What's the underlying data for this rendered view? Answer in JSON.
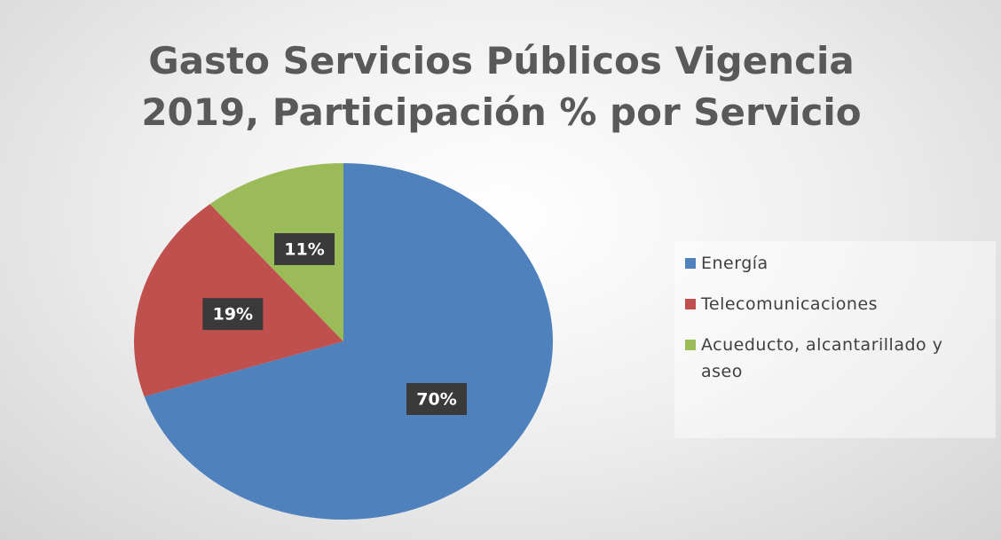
{
  "chart_data": {
    "type": "pie",
    "title": "Gasto Servicios Públicos Vigencia 2019, Participación % por Servicio",
    "categories": [
      "Energía",
      "Telecomunicaciones",
      "Acueducto, alcantarillado y aseo"
    ],
    "values": [
      70,
      19,
      11
    ],
    "value_labels": [
      "70%",
      "19%",
      "11%"
    ],
    "colors": [
      "#4f81bd",
      "#c0504d",
      "#9bbb59"
    ],
    "legend": "right"
  }
}
